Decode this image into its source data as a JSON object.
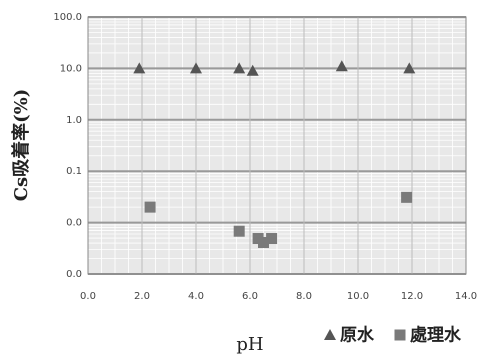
{
  "chart_data": {
    "type": "scatter",
    "xlabel": "pH",
    "ylabel": "Cs吸着率(%)",
    "xlim": [
      0,
      14
    ],
    "ylim": [
      0.001,
      100
    ],
    "ylog": true,
    "grid": true,
    "legend": "bottom",
    "xticks": [
      {
        "value": 0,
        "label": "0.0"
      },
      {
        "value": 2,
        "label": "2.0"
      },
      {
        "value": 4,
        "label": "4.0"
      },
      {
        "value": 6,
        "label": "6.0"
      },
      {
        "value": 8,
        "label": "8.0"
      },
      {
        "value": 10,
        "label": "10.0"
      },
      {
        "value": 12,
        "label": "12.0"
      },
      {
        "value": 14,
        "label": "14.0"
      }
    ],
    "yticks": [
      {
        "value": 100,
        "label": "100.0"
      },
      {
        "value": 10,
        "label": "10.0"
      },
      {
        "value": 1,
        "label": "1.0"
      },
      {
        "value": 0.1,
        "label": "0.1"
      },
      {
        "value": 0.01,
        "label": "0.0"
      },
      {
        "value": 0.001,
        "label": "0.0"
      }
    ],
    "series": [
      {
        "name": "原水",
        "marker": "triangle",
        "color": "#555555",
        "x": [
          1.9,
          4.0,
          5.6,
          6.1,
          9.4,
          11.9
        ],
        "values": [
          10,
          10,
          10,
          9,
          11,
          10
        ]
      },
      {
        "name": "處理水",
        "marker": "square",
        "color": "#7a7a7a",
        "x": [
          2.3,
          5.6,
          6.3,
          6.5,
          6.8,
          11.8
        ],
        "values": [
          0.02,
          0.0068,
          0.0049,
          0.0041,
          0.0049,
          0.031
        ]
      }
    ]
  }
}
